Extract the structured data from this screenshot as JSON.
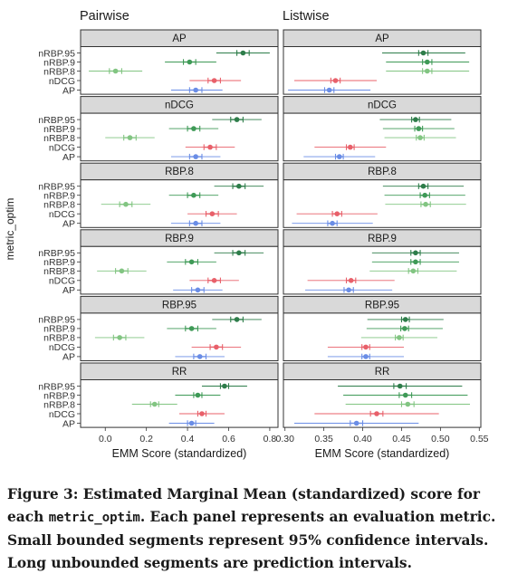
{
  "chart_data": {
    "type": "forest-plot-faceted",
    "columns": [
      "Pairwise",
      "Listwise"
    ],
    "panels": [
      "AP",
      "nDCG",
      "RBP.8",
      "RBP.9",
      "RBP.95",
      "RR"
    ],
    "y_categories": [
      "nRBP.95",
      "nRBP.9",
      "nRBP.8",
      "nDCG",
      "AP"
    ],
    "ylabel": "metric_optim",
    "xlabel": "EMM Score (standardized)",
    "xlim": {
      "Pairwise": [
        -0.12,
        0.84
      ],
      "Listwise": [
        0.298,
        0.552
      ]
    },
    "xticks": {
      "Pairwise": {
        "values": [
          0.0,
          0.2,
          0.4,
          0.6,
          0.8
        ],
        "labels": [
          "0.0",
          "0.2",
          "0.4",
          "0.6",
          "0.8"
        ]
      },
      "Listwise": {
        "values": [
          0.3,
          0.35,
          0.4,
          0.45,
          0.5,
          0.55
        ],
        "labels": [
          "0.30",
          "0.35",
          "0.40",
          "0.45",
          "0.50",
          "0.55"
        ]
      }
    },
    "colors": {
      "nRBP.95": "#2e7d4a",
      "nRBP.9": "#3f9a57",
      "nRBP.8": "#82c582",
      "nDCG": "#e8606a",
      "AP": "#6a8de6"
    },
    "data": {
      "Pairwise": {
        "AP": {
          "nRBP.95": [
            0.67,
            0.64,
            0.7,
            0.54,
            0.8
          ],
          "nRBP.9": [
            0.41,
            0.38,
            0.44,
            0.29,
            0.54
          ],
          "nRBP.8": [
            0.05,
            0.02,
            0.08,
            -0.08,
            0.18
          ],
          "nDCG": [
            0.53,
            0.5,
            0.56,
            0.41,
            0.66
          ],
          "AP": [
            0.44,
            0.41,
            0.47,
            0.32,
            0.57
          ]
        },
        "nDCG": {
          "nRBP.95": [
            0.64,
            0.61,
            0.67,
            0.52,
            0.76
          ],
          "nRBP.9": [
            0.43,
            0.4,
            0.46,
            0.31,
            0.55
          ],
          "nRBP.8": [
            0.12,
            0.09,
            0.15,
            0.0,
            0.24
          ],
          "nDCG": [
            0.51,
            0.48,
            0.54,
            0.39,
            0.63
          ],
          "AP": [
            0.44,
            0.41,
            0.47,
            0.32,
            0.56
          ]
        },
        "RBP.8": {
          "nRBP.95": [
            0.65,
            0.62,
            0.68,
            0.53,
            0.77
          ],
          "nRBP.9": [
            0.43,
            0.4,
            0.46,
            0.31,
            0.55
          ],
          "nRBP.8": [
            0.1,
            0.07,
            0.13,
            -0.02,
            0.22
          ],
          "nDCG": [
            0.52,
            0.49,
            0.55,
            0.4,
            0.64
          ],
          "AP": [
            0.44,
            0.41,
            0.47,
            0.32,
            0.56
          ]
        },
        "RBP.9": {
          "nRBP.95": [
            0.65,
            0.62,
            0.68,
            0.53,
            0.77
          ],
          "nRBP.9": [
            0.42,
            0.39,
            0.45,
            0.3,
            0.54
          ],
          "nRBP.8": [
            0.08,
            0.05,
            0.11,
            -0.04,
            0.2
          ],
          "nDCG": [
            0.53,
            0.5,
            0.56,
            0.41,
            0.65
          ],
          "AP": [
            0.45,
            0.42,
            0.48,
            0.33,
            0.57
          ]
        },
        "RBP.95": {
          "nRBP.95": [
            0.64,
            0.61,
            0.67,
            0.52,
            0.76
          ],
          "nRBP.9": [
            0.42,
            0.39,
            0.45,
            0.3,
            0.54
          ],
          "nRBP.8": [
            0.07,
            0.04,
            0.1,
            -0.05,
            0.19
          ],
          "nDCG": [
            0.54,
            0.51,
            0.57,
            0.42,
            0.66
          ],
          "AP": [
            0.46,
            0.43,
            0.49,
            0.34,
            0.58
          ]
        },
        "RR": {
          "nRBP.95": [
            0.58,
            0.56,
            0.6,
            0.47,
            0.69
          ],
          "nRBP.9": [
            0.45,
            0.43,
            0.47,
            0.34,
            0.56
          ],
          "nRBP.8": [
            0.24,
            0.22,
            0.26,
            0.13,
            0.35
          ],
          "nDCG": [
            0.47,
            0.45,
            0.49,
            0.36,
            0.58
          ],
          "AP": [
            0.42,
            0.4,
            0.44,
            0.31,
            0.53
          ]
        }
      },
      "Listwise": {
        "AP": {
          "nRBP.95": [
            0.478,
            0.472,
            0.484,
            0.425,
            0.532
          ],
          "nRBP.9": [
            0.483,
            0.477,
            0.489,
            0.43,
            0.537
          ],
          "nRBP.8": [
            0.483,
            0.477,
            0.489,
            0.43,
            0.537
          ],
          "nDCG": [
            0.365,
            0.359,
            0.371,
            0.312,
            0.418
          ],
          "AP": [
            0.357,
            0.351,
            0.363,
            0.304,
            0.41
          ]
        },
        "nDCG": {
          "nRBP.95": [
            0.468,
            0.463,
            0.473,
            0.422,
            0.514
          ],
          "nRBP.9": [
            0.472,
            0.467,
            0.477,
            0.426,
            0.518
          ],
          "nRBP.8": [
            0.474,
            0.469,
            0.479,
            0.428,
            0.52
          ],
          "nDCG": [
            0.384,
            0.379,
            0.389,
            0.338,
            0.43
          ],
          "AP": [
            0.37,
            0.365,
            0.375,
            0.324,
            0.416
          ]
        },
        "RBP.8": {
          "nRBP.95": [
            0.478,
            0.472,
            0.484,
            0.426,
            0.53
          ],
          "nRBP.9": [
            0.48,
            0.474,
            0.486,
            0.428,
            0.532
          ],
          "nRBP.8": [
            0.481,
            0.475,
            0.487,
            0.429,
            0.533
          ],
          "nDCG": [
            0.367,
            0.361,
            0.373,
            0.315,
            0.419
          ],
          "AP": [
            0.361,
            0.355,
            0.367,
            0.309,
            0.413
          ]
        },
        "RBP.9": {
          "nRBP.95": [
            0.468,
            0.462,
            0.474,
            0.412,
            0.524
          ],
          "nRBP.9": [
            0.468,
            0.462,
            0.474,
            0.412,
            0.524
          ],
          "nRBP.8": [
            0.465,
            0.459,
            0.471,
            0.409,
            0.521
          ],
          "nDCG": [
            0.385,
            0.379,
            0.391,
            0.329,
            0.441
          ],
          "AP": [
            0.382,
            0.376,
            0.388,
            0.326,
            0.438
          ]
        },
        "RBP.95": {
          "nRBP.95": [
            0.455,
            0.45,
            0.46,
            0.406,
            0.504
          ],
          "nRBP.9": [
            0.454,
            0.449,
            0.459,
            0.405,
            0.503
          ],
          "nRBP.8": [
            0.447,
            0.442,
            0.452,
            0.398,
            0.496
          ],
          "nDCG": [
            0.404,
            0.399,
            0.409,
            0.355,
            0.453
          ],
          "AP": [
            0.404,
            0.399,
            0.409,
            0.355,
            0.453
          ]
        },
        "RR": {
          "nRBP.95": [
            0.448,
            0.44,
            0.456,
            0.368,
            0.528
          ],
          "nRBP.9": [
            0.455,
            0.447,
            0.463,
            0.375,
            0.535
          ],
          "nRBP.8": [
            0.458,
            0.45,
            0.466,
            0.378,
            0.538
          ],
          "nDCG": [
            0.418,
            0.41,
            0.426,
            0.338,
            0.498
          ],
          "AP": [
            0.392,
            0.384,
            0.4,
            0.312,
            0.472
          ]
        }
      }
    },
    "value_format": "[estimate, ci_low, ci_high, pi_low, pi_high]"
  },
  "caption": {
    "prefix": "Figure 3: Estimated Marginal Mean (standardized) score for each ",
    "code": "metric_optim",
    "suffix": ". Each panel represents an evaluation metric. Small bounded segments represent 95% confidence intervals. Long unbounded segments are prediction intervals."
  }
}
